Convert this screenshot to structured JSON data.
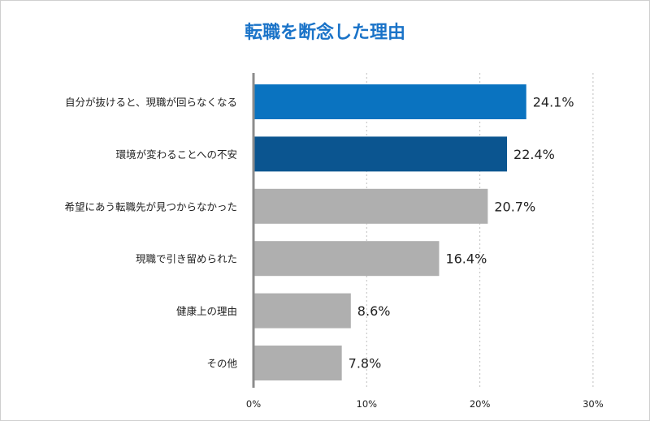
{
  "chart_data": {
    "type": "bar",
    "orientation": "horizontal",
    "title": "転職を断念した理由",
    "categories": [
      "自分が抜けると、現職が回らなくなる",
      "環境が変わることへの不安",
      "希望にあう転職先が見つからなかった",
      "現職で引き留められた",
      "健康上の理由",
      "その他"
    ],
    "values": [
      24.1,
      22.4,
      20.7,
      16.4,
      8.6,
      7.8
    ],
    "value_labels": [
      "24.1%",
      "22.4%",
      "20.7%",
      "16.4%",
      "8.6%",
      "7.8%"
    ],
    "bar_colors": [
      "#0a73c0",
      "#0b5590",
      "#afafaf",
      "#afafaf",
      "#afafaf",
      "#afafaf"
    ],
    "xlim": [
      0,
      30
    ],
    "x_ticks": [
      0,
      10,
      20,
      30
    ],
    "x_tick_labels": [
      "0%",
      "10%",
      "20%",
      "30%"
    ],
    "grid": "vertical-dotted",
    "legend": "none",
    "xlabel": "",
    "ylabel": ""
  },
  "colors": {
    "title": "#1a73c8",
    "axis": "#8c8c8c",
    "grid": "#bfbfbf"
  }
}
